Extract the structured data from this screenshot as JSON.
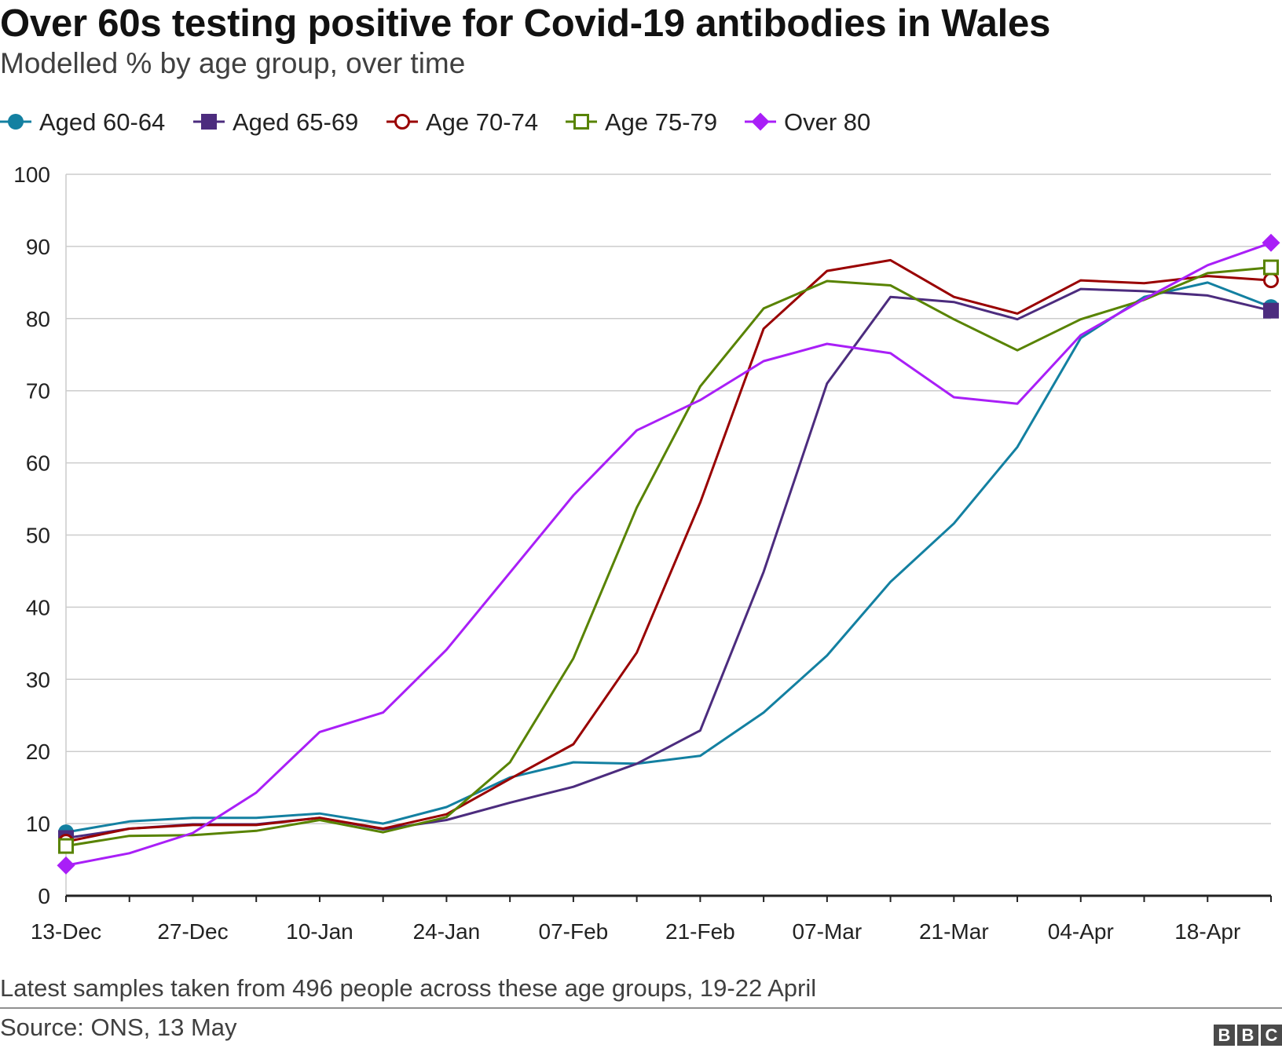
{
  "header": {
    "title": "Over 60s testing positive for Covid-19 antibodies in Wales",
    "subtitle": "Modelled % by age group, over time"
  },
  "footer": {
    "note": "Latest samples taken from 496 people across these age groups, 19-22 April",
    "source": "Source: ONS, 13 May",
    "logo_letters": [
      "B",
      "B",
      "C"
    ]
  },
  "chart_data": {
    "type": "line",
    "title": "Over 60s testing positive for Covid-19 antibodies in Wales",
    "subtitle": "Modelled % by age group, over time",
    "xlabel": "",
    "ylabel": "",
    "ylim": [
      0,
      100
    ],
    "yticks": [
      0,
      10,
      20,
      30,
      40,
      50,
      60,
      70,
      80,
      90,
      100
    ],
    "xticks": [
      "13-Dec",
      "27-Dec",
      "10-Jan",
      "24-Jan",
      "07-Feb",
      "21-Feb",
      "07-Mar",
      "21-Mar",
      "04-Apr",
      "18-Apr"
    ],
    "x": [
      "13-Dec",
      "20-Dec",
      "27-Dec",
      "03-Jan",
      "10-Jan",
      "17-Jan",
      "24-Jan",
      "31-Jan",
      "07-Feb",
      "14-Feb",
      "21-Feb",
      "28-Feb",
      "07-Mar",
      "14-Mar",
      "21-Mar",
      "28-Mar",
      "04-Apr",
      "11-Apr",
      "18-Apr",
      "25-Apr"
    ],
    "grid": true,
    "legend_position": "top",
    "series": [
      {
        "name": "Aged 60-64",
        "color": "#1380a1",
        "marker": "circle-filled",
        "values": [
          8.8,
          10.3,
          10.8,
          10.8,
          11.4,
          10.0,
          12.3,
          16.4,
          18.5,
          18.3,
          19.4,
          25.4,
          33.3,
          43.5,
          51.6,
          62.2,
          77.3,
          83.0,
          85.0,
          81.6
        ]
      },
      {
        "name": "Aged 65-69",
        "color": "#4c2c7e",
        "marker": "square-filled",
        "values": [
          8.0,
          9.3,
          9.9,
          9.9,
          10.8,
          9.2,
          10.5,
          12.9,
          15.1,
          18.3,
          22.9,
          44.9,
          71.0,
          83.0,
          82.3,
          79.9,
          84.1,
          83.8,
          83.2,
          81.1
        ]
      },
      {
        "name": "Age 70-74",
        "color": "#990000",
        "marker": "circle-open",
        "values": [
          7.5,
          9.3,
          9.8,
          9.8,
          10.8,
          9.3,
          11.3,
          16.2,
          21.0,
          33.7,
          54.5,
          78.6,
          86.6,
          88.1,
          83.0,
          80.7,
          85.3,
          84.9,
          85.9,
          85.3
        ]
      },
      {
        "name": "Age 75-79",
        "color": "#588300",
        "marker": "square-open",
        "values": [
          6.9,
          8.3,
          8.4,
          9.0,
          10.5,
          8.8,
          10.9,
          18.5,
          32.9,
          53.8,
          70.6,
          81.4,
          85.2,
          84.6,
          79.9,
          75.6,
          79.9,
          82.6,
          86.3,
          87.1
        ]
      },
      {
        "name": "Over 80",
        "color": "#a91ff7",
        "marker": "diamond-filled",
        "values": [
          4.2,
          5.9,
          8.7,
          14.3,
          22.7,
          25.4,
          34.1,
          44.8,
          55.5,
          64.5,
          68.7,
          74.1,
          76.5,
          75.2,
          69.1,
          68.2,
          77.7,
          82.7,
          87.4,
          90.5
        ]
      }
    ]
  }
}
